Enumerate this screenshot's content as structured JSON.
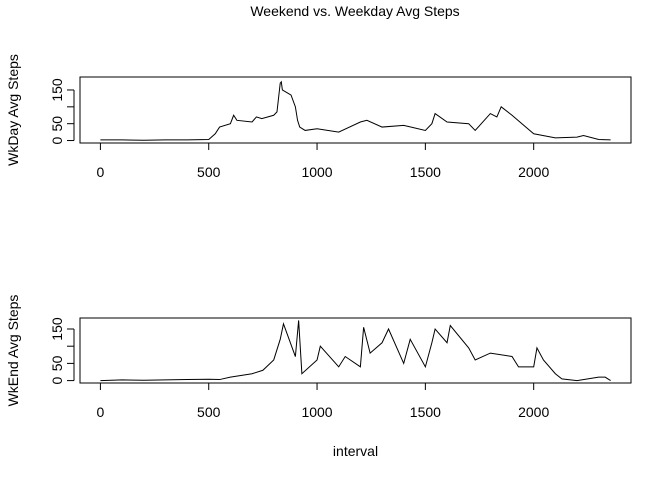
{
  "chart_data": [
    {
      "type": "line",
      "title": "Weekend vs. Weekday Avg Steps",
      "ylabel": "WkDay Avg Steps",
      "x": [
        0,
        100,
        200,
        300,
        400,
        500,
        530,
        550,
        600,
        615,
        630,
        700,
        720,
        745,
        800,
        815,
        830,
        835,
        840,
        880,
        900,
        910,
        920,
        945,
        1000,
        1100,
        1200,
        1230,
        1300,
        1400,
        1500,
        1530,
        1545,
        1600,
        1700,
        1730,
        1800,
        1830,
        1850,
        1900,
        2000,
        2100,
        2200,
        2230,
        2300,
        2355
      ],
      "values": [
        2,
        2,
        1,
        2,
        2,
        3,
        20,
        40,
        50,
        75,
        60,
        55,
        70,
        65,
        75,
        85,
        170,
        174,
        150,
        135,
        100,
        60,
        40,
        30,
        35,
        25,
        55,
        60,
        40,
        45,
        30,
        50,
        80,
        55,
        50,
        30,
        80,
        70,
        100,
        75,
        20,
        8,
        10,
        15,
        3,
        2
      ],
      "color": "#000000",
      "xlim": [
        -94.2,
        2449.2
      ],
      "xticks": [
        0,
        500,
        1000,
        1500,
        2000
      ],
      "ylim": [
        -7.3,
        188.5
      ],
      "yticks": [
        0,
        50,
        100,
        150
      ]
    },
    {
      "type": "line",
      "ylabel": "WkEnd Avg Steps",
      "xlabel": "interval",
      "x": [
        0,
        100,
        200,
        300,
        400,
        500,
        550,
        600,
        700,
        750,
        800,
        830,
        845,
        900,
        915,
        930,
        1000,
        1015,
        1100,
        1130,
        1200,
        1215,
        1245,
        1300,
        1330,
        1400,
        1430,
        1500,
        1530,
        1545,
        1600,
        1615,
        1700,
        1730,
        1800,
        1900,
        1930,
        2000,
        2015,
        2045,
        2100,
        2130,
        2200,
        2300,
        2330,
        2355
      ],
      "values": [
        0,
        2,
        1,
        2,
        3,
        4,
        3,
        10,
        20,
        30,
        60,
        120,
        165,
        70,
        175,
        20,
        60,
        100,
        40,
        70,
        40,
        155,
        80,
        110,
        150,
        50,
        120,
        40,
        110,
        150,
        110,
        160,
        95,
        60,
        80,
        70,
        40,
        40,
        95,
        60,
        20,
        5,
        0,
        10,
        10,
        0
      ],
      "color": "#000000",
      "xlim": [
        -94.2,
        2449.2
      ],
      "xticks": [
        0,
        500,
        1000,
        1500,
        2000
      ],
      "ylim": [
        -7,
        182
      ],
      "yticks": [
        0,
        50,
        100,
        150
      ]
    }
  ]
}
